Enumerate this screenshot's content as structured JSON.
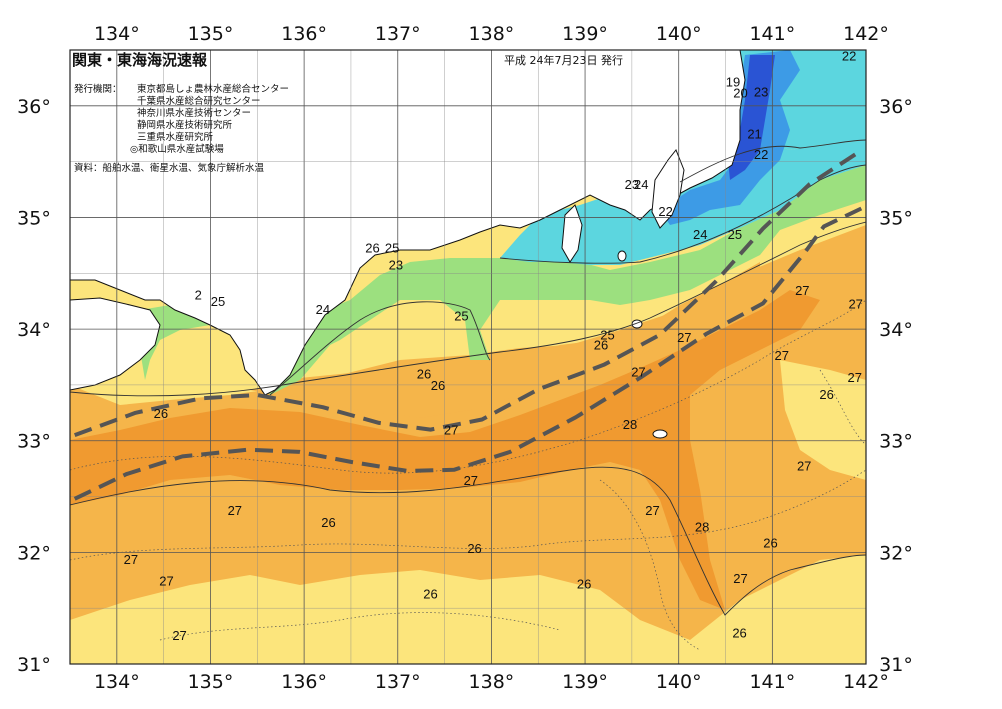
{
  "header": {
    "title": "関東・東海海況速報",
    "date": "平成 24年7月23日 発行",
    "issuer_label": "発行機関：",
    "issuers": [
      "東京都島しょ農林水産総合センター",
      "千葉県水産総合研究センター",
      "神奈川県水産技術センター",
      "静岡県水産技術研究所",
      "三重県水産研究所",
      "◎和歌山県水産試験場"
    ],
    "source": "資料：船舶水温、衛星水温、気象庁解析水温"
  },
  "axes": {
    "lon_ticks": [
      "134°",
      "135°",
      "136°",
      "137°",
      "138°",
      "139°",
      "140°",
      "141°",
      "142°"
    ],
    "lat_ticks": [
      "36°",
      "35°",
      "34°",
      "33°",
      "32°",
      "31°"
    ]
  },
  "isotherm_labels": [
    {
      "text": "22",
      "lon": 141.82,
      "lat": 36.45
    },
    {
      "text": "19",
      "lon": 140.58,
      "lat": 36.22
    },
    {
      "text": "20",
      "lon": 140.66,
      "lat": 36.12
    },
    {
      "text": "23",
      "lon": 140.88,
      "lat": 36.13
    },
    {
      "text": "21",
      "lon": 140.81,
      "lat": 35.75
    },
    {
      "text": "22",
      "lon": 140.88,
      "lat": 35.57
    },
    {
      "text": "23",
      "lon": 139.5,
      "lat": 35.3
    },
    {
      "text": "24",
      "lon": 139.6,
      "lat": 35.3
    },
    {
      "text": "22",
      "lon": 139.86,
      "lat": 35.06
    },
    {
      "text": "24",
      "lon": 140.23,
      "lat": 34.85
    },
    {
      "text": "25",
      "lon": 140.6,
      "lat": 34.85
    },
    {
      "text": "26",
      "lon": 136.73,
      "lat": 34.73
    },
    {
      "text": "25",
      "lon": 136.94,
      "lat": 34.73
    },
    {
      "text": "23",
      "lon": 136.98,
      "lat": 34.58
    },
    {
      "text": "24",
      "lon": 136.2,
      "lat": 34.18
    },
    {
      "text": "25",
      "lon": 137.68,
      "lat": 34.12
    },
    {
      "text": "2",
      "lon": 134.87,
      "lat": 34.31
    },
    {
      "text": "25",
      "lon": 135.08,
      "lat": 34.25
    },
    {
      "text": "25",
      "lon": 139.24,
      "lat": 33.95
    },
    {
      "text": "26",
      "lon": 139.17,
      "lat": 33.86
    },
    {
      "text": "27",
      "lon": 140.06,
      "lat": 33.93
    },
    {
      "text": "27",
      "lon": 141.32,
      "lat": 34.35
    },
    {
      "text": "27",
      "lon": 141.89,
      "lat": 34.23
    },
    {
      "text": "27",
      "lon": 141.1,
      "lat": 33.77
    },
    {
      "text": "27",
      "lon": 141.88,
      "lat": 33.57
    },
    {
      "text": "27",
      "lon": 139.57,
      "lat": 33.62
    },
    {
      "text": "26",
      "lon": 137.28,
      "lat": 33.6
    },
    {
      "text": "26",
      "lon": 137.43,
      "lat": 33.5
    },
    {
      "text": "26",
      "lon": 141.58,
      "lat": 33.42
    },
    {
      "text": "28",
      "lon": 139.48,
      "lat": 33.15
    },
    {
      "text": "27",
      "lon": 137.57,
      "lat": 33.1
    },
    {
      "text": "26",
      "lon": 134.47,
      "lat": 33.25
    },
    {
      "text": "27",
      "lon": 141.34,
      "lat": 32.78
    },
    {
      "text": "27",
      "lon": 137.78,
      "lat": 32.65
    },
    {
      "text": "27",
      "lon": 135.26,
      "lat": 32.38
    },
    {
      "text": "27",
      "lon": 139.72,
      "lat": 32.38
    },
    {
      "text": "26",
      "lon": 136.26,
      "lat": 32.27
    },
    {
      "text": "28",
      "lon": 140.25,
      "lat": 32.23
    },
    {
      "text": "26",
      "lon": 137.82,
      "lat": 32.04
    },
    {
      "text": "26",
      "lon": 140.98,
      "lat": 32.09
    },
    {
      "text": "27",
      "lon": 134.15,
      "lat": 31.94
    },
    {
      "text": "26",
      "lon": 138.99,
      "lat": 31.72
    },
    {
      "text": "27",
      "lon": 140.66,
      "lat": 31.77
    },
    {
      "text": "27",
      "lon": 134.53,
      "lat": 31.75
    },
    {
      "text": "26",
      "lon": 137.35,
      "lat": 31.63
    },
    {
      "text": "27",
      "lon": 134.67,
      "lat": 31.26
    },
    {
      "text": "26",
      "lon": 140.65,
      "lat": 31.28
    }
  ],
  "kuroshio_paths": [
    [
      [
        133.55,
        33.05
      ],
      [
        134.2,
        33.25
      ],
      [
        134.9,
        33.38
      ],
      [
        135.5,
        33.41
      ],
      [
        136.2,
        33.3
      ],
      [
        136.8,
        33.16
      ],
      [
        137.35,
        33.1
      ],
      [
        137.9,
        33.19
      ],
      [
        138.5,
        33.46
      ],
      [
        139.2,
        33.68
      ],
      [
        139.8,
        33.95
      ],
      [
        140.4,
        34.43
      ],
      [
        140.9,
        34.9
      ],
      [
        141.4,
        35.3
      ],
      [
        141.95,
        35.6
      ]
    ],
    [
      [
        133.55,
        32.48
      ],
      [
        134.1,
        32.7
      ],
      [
        134.7,
        32.86
      ],
      [
        135.4,
        32.92
      ],
      [
        135.95,
        32.9
      ],
      [
        136.5,
        32.81
      ],
      [
        137.1,
        32.73
      ],
      [
        137.6,
        32.74
      ],
      [
        138.2,
        32.9
      ],
      [
        138.9,
        33.21
      ],
      [
        139.6,
        33.57
      ],
      [
        140.3,
        33.96
      ],
      [
        140.9,
        34.23
      ],
      [
        141.35,
        34.69
      ],
      [
        141.55,
        34.92
      ],
      [
        141.95,
        35.08
      ]
    ]
  ],
  "temperature_zones": [
    {
      "name": "very-warm",
      "color": "#f09a30"
    },
    {
      "name": "warm",
      "color": "#f5b54a"
    },
    {
      "name": "mild",
      "color": "#fce57c"
    },
    {
      "name": "transition",
      "color": "#9ce07f"
    },
    {
      "name": "cool",
      "color": "#5cd6df"
    },
    {
      "name": "cold",
      "color": "#3d9be6"
    },
    {
      "name": "very-cold",
      "color": "#2a54d4"
    },
    {
      "name": "land",
      "color": "#ffffff"
    }
  ]
}
